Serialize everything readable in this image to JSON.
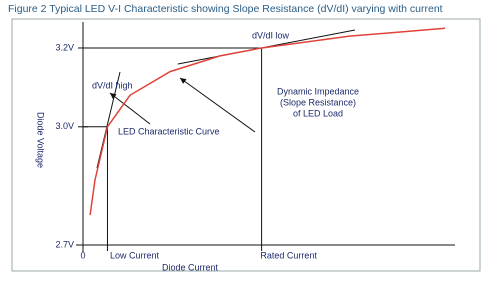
{
  "chart_data": {
    "type": "line",
    "title": "Figure 2 Typical LED V-I Characteristic showing Slope Resistance (dV/dI) varying with current",
    "x_label": "Diode Current",
    "y_label": "Diode Voltage",
    "x": [
      0.29,
      0.49,
      1,
      1.92,
      3.56,
      5.6,
      7.3,
      10.9,
      14.8
    ],
    "values": [
      2.776,
      2.865,
      3.0,
      3.08,
      3.14,
      3.18,
      3.2,
      3.23,
      3.25
    ],
    "color": "#e0433a",
    "xlim": [
      0,
      15
    ],
    "ylim": [
      2.7,
      3.27
    ],
    "xticks": [
      0,
      {
        "value": 1,
        "label": "Low Current"
      },
      {
        "value": 7.3,
        "label": "Rated Current"
      }
    ],
    "yticks": [
      {
        "value": 2.7,
        "label": "2.7V"
      },
      {
        "value": 3.0,
        "label": "3.0V"
      },
      {
        "value": 3.2,
        "label": "3.2V"
      }
    ],
    "annotations": {
      "high": "dV/dI high",
      "low": "dV/dI low",
      "curve": "LED Characteristic Curve",
      "impedance": [
        "Dynamic Impedance",
        "(Slope Resistance)",
        "of LED Load"
      ]
    }
  }
}
